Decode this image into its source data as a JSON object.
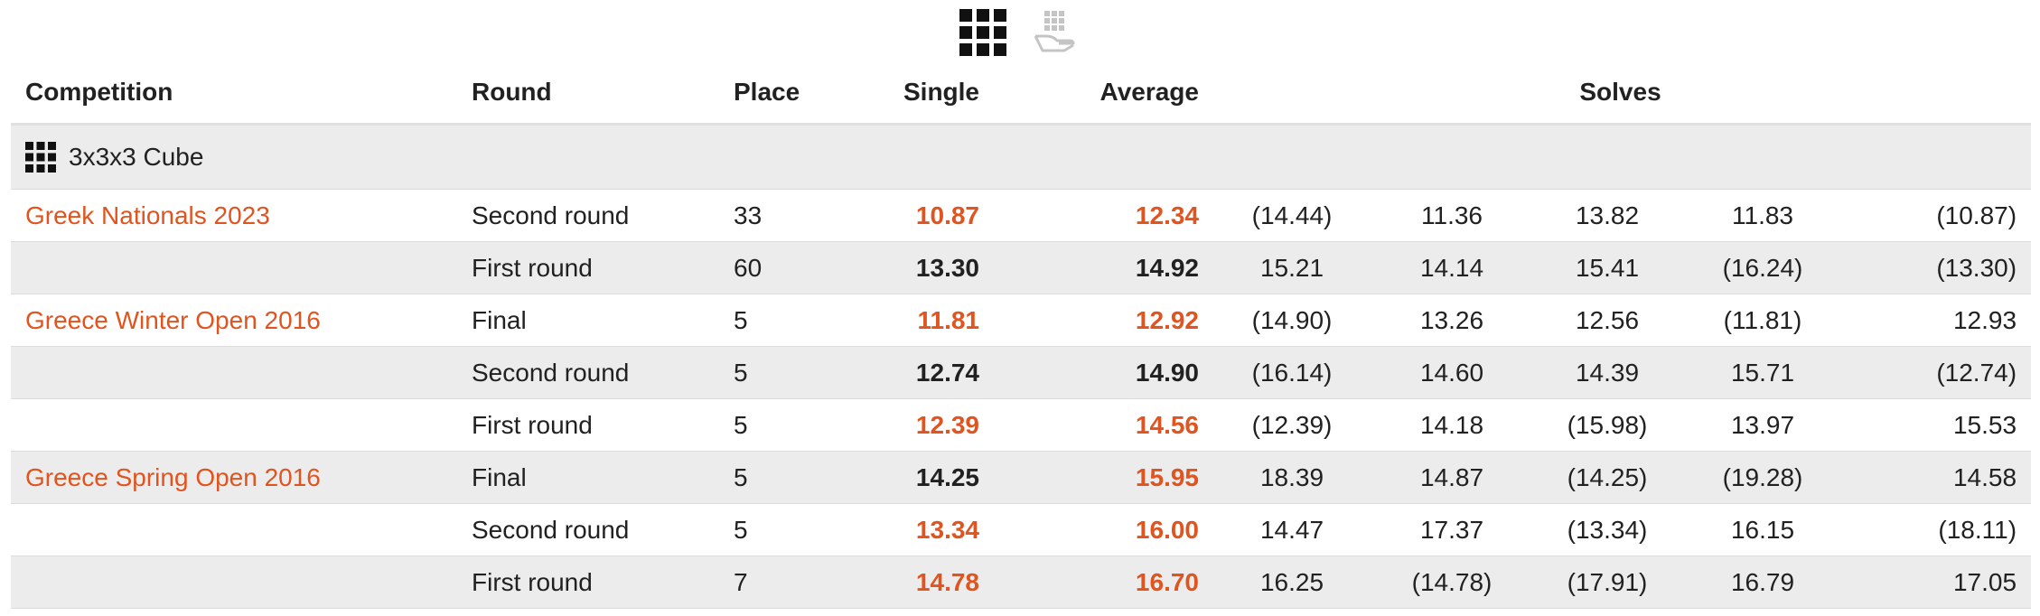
{
  "toolbar": {
    "views": [
      {
        "icon": "grid-icon",
        "active": true
      },
      {
        "icon": "grid-hand-icon",
        "active": false
      }
    ]
  },
  "table": {
    "headers": {
      "competition": "Competition",
      "round": "Round",
      "place": "Place",
      "single": "Single",
      "average": "Average",
      "solves": "Solves"
    },
    "event": {
      "icon": "grid-icon",
      "name": "3x3x3 Cube"
    },
    "rows": [
      {
        "competition": "Greek Nationals 2023",
        "round": "Second round",
        "place": "33",
        "single": "10.87",
        "single_pr": true,
        "average": "12.34",
        "average_pr": true,
        "solves": [
          "(14.44)",
          "11.36",
          "13.82",
          "11.83",
          "(10.87)"
        ]
      },
      {
        "competition": "",
        "round": "First round",
        "place": "60",
        "single": "13.30",
        "single_pr": false,
        "average": "14.92",
        "average_pr": false,
        "solves": [
          "15.21",
          "14.14",
          "15.41",
          "(16.24)",
          "(13.30)"
        ]
      },
      {
        "competition": "Greece Winter Open 2016",
        "round": "Final",
        "place": "5",
        "single": "11.81",
        "single_pr": true,
        "average": "12.92",
        "average_pr": true,
        "solves": [
          "(14.90)",
          "13.26",
          "12.56",
          "(11.81)",
          "12.93"
        ]
      },
      {
        "competition": "",
        "round": "Second round",
        "place": "5",
        "single": "12.74",
        "single_pr": false,
        "average": "14.90",
        "average_pr": false,
        "solves": [
          "(16.14)",
          "14.60",
          "14.39",
          "15.71",
          "(12.74)"
        ]
      },
      {
        "competition": "",
        "round": "First round",
        "place": "5",
        "single": "12.39",
        "single_pr": true,
        "average": "14.56",
        "average_pr": true,
        "solves": [
          "(12.39)",
          "14.18",
          "(15.98)",
          "13.97",
          "15.53"
        ]
      },
      {
        "competition": "Greece Spring Open 2016",
        "round": "Final",
        "place": "5",
        "single": "14.25",
        "single_pr": false,
        "average": "15.95",
        "average_pr": true,
        "solves": [
          "18.39",
          "14.87",
          "(14.25)",
          "(19.28)",
          "14.58"
        ]
      },
      {
        "competition": "",
        "round": "Second round",
        "place": "5",
        "single": "13.34",
        "single_pr": true,
        "average": "16.00",
        "average_pr": true,
        "solves": [
          "14.47",
          "17.37",
          "(13.34)",
          "16.15",
          "(18.11)"
        ]
      },
      {
        "competition": "",
        "round": "First round",
        "place": "7",
        "single": "14.78",
        "single_pr": true,
        "average": "16.70",
        "average_pr": true,
        "solves": [
          "16.25",
          "(14.78)",
          "(17.91)",
          "16.79",
          "17.05"
        ]
      }
    ]
  },
  "colors": {
    "accent": "#e0541f",
    "stripe": "#ececec",
    "text": "#212121"
  }
}
